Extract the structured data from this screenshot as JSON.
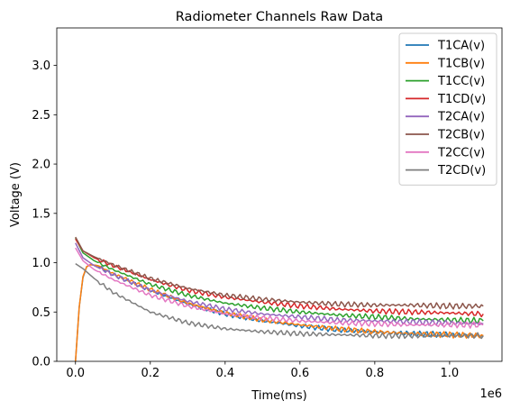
{
  "chart_data": {
    "type": "line",
    "title": "Radiometer Channels Raw Data",
    "xlabel": "Time(ms)",
    "ylabel": "Voltage (V)",
    "x_offset_label": "1e6",
    "xlim": [
      -50000,
      1140000
    ],
    "ylim": [
      0,
      3.38
    ],
    "x_ticks": [
      0,
      0.2,
      0.4,
      0.6,
      0.8,
      1.0
    ],
    "x_tick_labels": [
      "0.0",
      "0.2",
      "0.4",
      "0.6",
      "0.8",
      "1.0"
    ],
    "x_tick_scale": 1000000,
    "y_ticks": [
      0,
      0.5,
      1.0,
      1.5,
      2.0,
      2.5,
      3.0
    ],
    "y_tick_labels": [
      "0.0",
      "0.5",
      "1.0",
      "1.5",
      "2.0",
      "2.5",
      "3.0"
    ],
    "grid": false,
    "legend_position": "top-right",
    "series": [
      {
        "name": "T1CA(v)",
        "color": "#1f77b4",
        "x": [
          0,
          10000,
          20000,
          30000,
          40000,
          60000,
          100000,
          200000,
          300000,
          400000,
          500000,
          600000,
          700000,
          800000,
          900000,
          1000000,
          1090000
        ],
        "values": [
          0.0,
          0.55,
          0.85,
          0.96,
          0.98,
          0.97,
          0.88,
          0.72,
          0.58,
          0.48,
          0.41,
          0.36,
          0.32,
          0.3,
          0.28,
          0.27,
          0.26
        ]
      },
      {
        "name": "T1CB(v)",
        "color": "#ff7f0e",
        "x": [
          0,
          10000,
          20000,
          30000,
          40000,
          60000,
          100000,
          200000,
          300000,
          400000,
          500000,
          600000,
          700000,
          800000,
          900000,
          1000000,
          1090000
        ],
        "values": [
          0.0,
          0.55,
          0.86,
          0.96,
          0.98,
          0.97,
          0.89,
          0.73,
          0.59,
          0.49,
          0.42,
          0.37,
          0.33,
          0.3,
          0.28,
          0.27,
          0.26
        ]
      },
      {
        "name": "T1CC(v)",
        "color": "#2ca02c",
        "x": [
          0,
          20000,
          50000,
          100000,
          200000,
          300000,
          400000,
          500000,
          600000,
          700000,
          800000,
          900000,
          1000000,
          1090000
        ],
        "values": [
          1.25,
          1.1,
          1.02,
          0.93,
          0.78,
          0.67,
          0.59,
          0.54,
          0.5,
          0.47,
          0.45,
          0.43,
          0.42,
          0.41
        ]
      },
      {
        "name": "T1CD(v)",
        "color": "#d62728",
        "x": [
          0,
          20000,
          50000,
          100000,
          200000,
          300000,
          400000,
          500000,
          600000,
          700000,
          800000,
          900000,
          1000000,
          1090000
        ],
        "values": [
          1.24,
          1.12,
          1.05,
          0.97,
          0.83,
          0.72,
          0.65,
          0.6,
          0.56,
          0.53,
          0.51,
          0.5,
          0.49,
          0.48
        ]
      },
      {
        "name": "T2CA(v)",
        "color": "#9467bd",
        "x": [
          0,
          20000,
          50000,
          100000,
          200000,
          300000,
          400000,
          500000,
          600000,
          700000,
          800000,
          900000,
          1000000,
          1090000
        ],
        "values": [
          1.2,
          1.05,
          0.97,
          0.88,
          0.72,
          0.61,
          0.53,
          0.48,
          0.45,
          0.42,
          0.41,
          0.4,
          0.39,
          0.38
        ]
      },
      {
        "name": "T2CB(v)",
        "color": "#8c564b",
        "x": [
          0,
          20000,
          50000,
          100000,
          200000,
          300000,
          400000,
          500000,
          600000,
          700000,
          800000,
          900000,
          1000000,
          1090000
        ],
        "values": [
          1.26,
          1.12,
          1.06,
          0.98,
          0.84,
          0.74,
          0.67,
          0.63,
          0.6,
          0.58,
          0.57,
          0.57,
          0.56,
          0.56
        ]
      },
      {
        "name": "T2CC(v)",
        "color": "#e377c2",
        "x": [
          0,
          20000,
          50000,
          100000,
          200000,
          300000,
          400000,
          500000,
          600000,
          700000,
          800000,
          900000,
          1000000,
          1090000
        ],
        "values": [
          1.15,
          1.02,
          0.93,
          0.83,
          0.67,
          0.56,
          0.48,
          0.44,
          0.41,
          0.39,
          0.38,
          0.37,
          0.37,
          0.37
        ]
      },
      {
        "name": "T2CD(v)",
        "color": "#7f7f7f",
        "x": [
          0,
          20000,
          50000,
          100000,
          200000,
          300000,
          400000,
          500000,
          600000,
          700000,
          800000,
          900000,
          1000000,
          1090000
        ],
        "values": [
          0.99,
          0.94,
          0.84,
          0.7,
          0.5,
          0.39,
          0.33,
          0.3,
          0.28,
          0.27,
          0.26,
          0.26,
          0.26,
          0.26
        ]
      }
    ]
  }
}
